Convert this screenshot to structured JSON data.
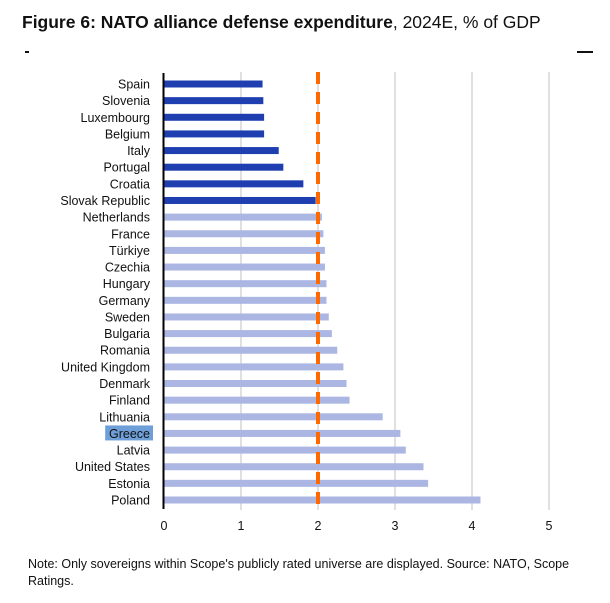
{
  "title": {
    "bold": "Figure 6: NATO alliance defense expenditure",
    "rest": ", 2024E, % of GDP"
  },
  "note": "Note: Only sovereigns within Scope's publicly rated universe are displayed. Source: NATO, Scope Ratings.",
  "chart_data": {
    "type": "bar",
    "orientation": "horizontal",
    "categories": [
      "Spain",
      "Slovenia",
      "Luxembourg",
      "Belgium",
      "Italy",
      "Portugal",
      "Croatia",
      "Slovak Republic",
      "Netherlands",
      "France",
      "Türkiye",
      "Czechia",
      "Hungary",
      "Germany",
      "Sweden",
      "Bulgaria",
      "Romania",
      "United Kingdom",
      "Denmark",
      "Finland",
      "Lithuania",
      "Greece",
      "Latvia",
      "United States",
      "Estonia",
      "Poland"
    ],
    "values": [
      1.28,
      1.29,
      1.3,
      1.3,
      1.49,
      1.55,
      1.81,
      1.97,
      2.05,
      2.07,
      2.09,
      2.09,
      2.11,
      2.11,
      2.14,
      2.18,
      2.25,
      2.33,
      2.37,
      2.41,
      2.84,
      3.07,
      3.14,
      3.37,
      3.43,
      4.11
    ],
    "below_target_color": "#1f3fb1",
    "above_target_color": "#abb6e3",
    "reference_line": {
      "value": 2,
      "color": "#ff6a00",
      "style": "dashed"
    },
    "highlighted_category": "Greece",
    "highlight_color": "#6f9fd8",
    "xlim": [
      0,
      5
    ],
    "xticks": [
      "0",
      "1",
      "2",
      "3",
      "4",
      "5"
    ],
    "grid": "vertical"
  }
}
